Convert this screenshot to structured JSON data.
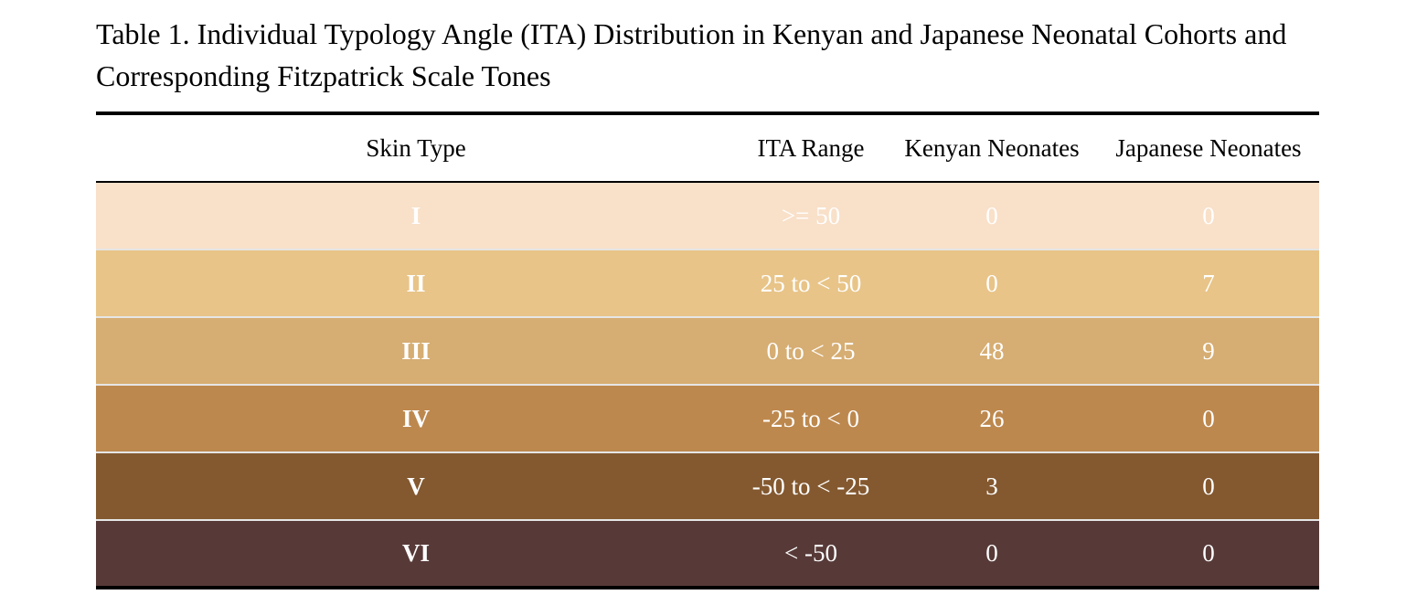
{
  "caption": "Table 1. Individual Typology Angle (ITA) Distribution in Kenyan and Japanese Neonatal Cohorts and Corresponding Fitzpatrick Scale Tones",
  "headers": [
    "Skin Type",
    "ITA Range",
    "Kenyan Neonates",
    "Japanese Neonates"
  ],
  "rows": [
    {
      "type": "I",
      "range": ">= 50",
      "kenyan": "0",
      "japanese": "0",
      "color": "#f9e0c9"
    },
    {
      "type": "II",
      "range": "25 to < 50",
      "kenyan": "0",
      "japanese": "7",
      "color": "#e8c488"
    },
    {
      "type": "III",
      "range": "0 to < 25",
      "kenyan": "48",
      "japanese": "9",
      "color": "#d6ad72"
    },
    {
      "type": "IV",
      "range": "-25 to < 0",
      "kenyan": "26",
      "japanese": "0",
      "color": "#bd884e"
    },
    {
      "type": "V",
      "range": "-50 to < -25",
      "kenyan": "3",
      "japanese": "0",
      "color": "#845930"
    },
    {
      "type": "VI",
      "range": "< -50",
      "kenyan": "0",
      "japanese": "0",
      "color": "#573a38"
    }
  ]
}
